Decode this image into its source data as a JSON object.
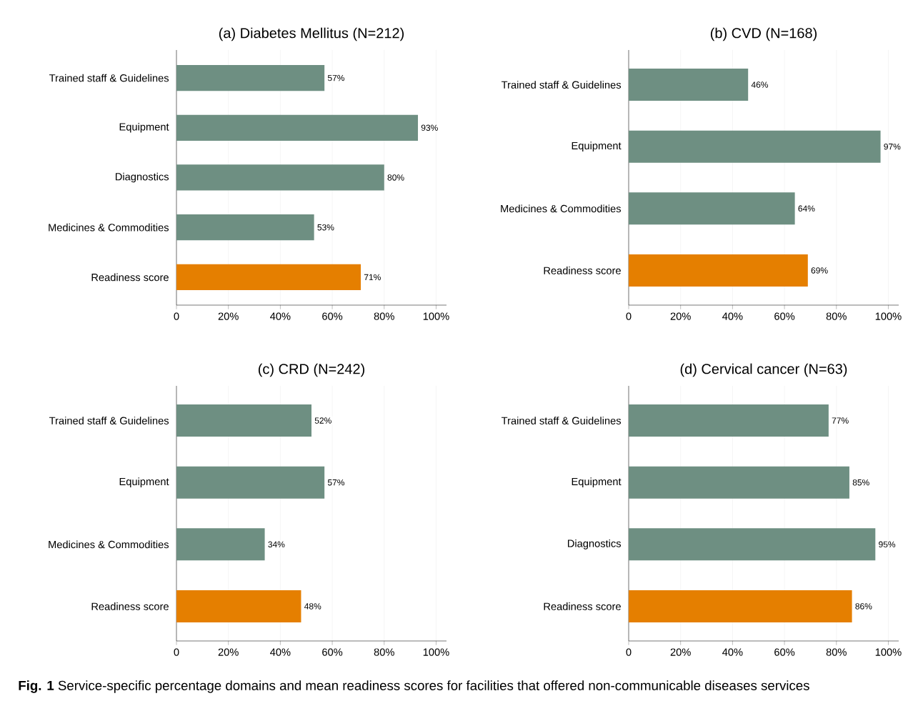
{
  "chart_data": [
    {
      "type": "bar",
      "orientation": "horizontal",
      "title": "(a) Diabetes Mellitus (N=212)",
      "categories": [
        "Trained staff & Guidelines",
        "Equipment",
        "Diagnostics",
        "Medicines & Commodities",
        "Readiness score"
      ],
      "values": [
        57,
        93,
        80,
        53,
        71
      ],
      "value_labels": [
        "57%",
        "93%",
        "80%",
        "53%",
        "71%"
      ],
      "colors": [
        "#6e8f82",
        "#6e8f82",
        "#6e8f82",
        "#6e8f82",
        "#e57f00"
      ],
      "xlim": [
        0,
        104
      ],
      "xticks": [
        0,
        {
          "value": 20,
          "label": "20%"
        },
        {
          "value": 40,
          "label": "40%"
        },
        {
          "value": 60,
          "label": "60%"
        },
        {
          "value": 80,
          "label": "80%"
        },
        {
          "value": 100,
          "label": "100%"
        }
      ],
      "grid": "x",
      "annotations": [
        "**Fig. 1** Service-specific percentage domains and mean readiness scores for facilities that offered non-communicable diseases services"
      ]
    },
    {
      "type": "bar",
      "orientation": "horizontal",
      "title": "(b) CVD (N=168)",
      "categories": [
        "Trained staff & Guidelines",
        "Equipment",
        "Medicines & Commodities",
        "Readiness score"
      ],
      "values": [
        46,
        97,
        64,
        69
      ],
      "value_labels": [
        "46%",
        "97%",
        "64%",
        "69%"
      ],
      "colors": [
        "#6e8f82",
        "#6e8f82",
        "#6e8f82",
        "#e57f00"
      ],
      "xlim": [
        0,
        104
      ],
      "xticks": [
        0,
        {
          "value": 20,
          "label": "20%"
        },
        {
          "value": 40,
          "label": "40%"
        },
        {
          "value": 60,
          "label": "60%"
        },
        {
          "value": 80,
          "label": "80%"
        },
        {
          "value": 100,
          "label": "100%"
        }
      ],
      "grid": "x"
    },
    {
      "type": "bar",
      "orientation": "horizontal",
      "title": "(c) CRD (N=242)",
      "categories": [
        "Trained staff & Guidelines",
        "Equipment",
        "Medicines & Commodities",
        "Readiness score"
      ],
      "values": [
        52,
        57,
        34,
        48
      ],
      "value_labels": [
        "52%",
        "57%",
        "34%",
        "48%"
      ],
      "colors": [
        "#6e8f82",
        "#6e8f82",
        "#6e8f82",
        "#e57f00"
      ],
      "xlim": [
        0,
        104
      ],
      "xticks": [
        0,
        {
          "value": 20,
          "label": "20%"
        },
        {
          "value": 40,
          "label": "40%"
        },
        {
          "value": 60,
          "label": "60%"
        },
        {
          "value": 80,
          "label": "80%"
        },
        {
          "value": 100,
          "label": "100%"
        }
      ],
      "grid": "x"
    },
    {
      "type": "bar",
      "orientation": "horizontal",
      "title": "(d) Cervical cancer (N=63)",
      "categories": [
        "Trained staff & Guidelines",
        "Equipment",
        "Diagnostics",
        "Readiness score"
      ],
      "values": [
        77,
        85,
        95,
        86
      ],
      "value_labels": [
        "77%",
        "85%",
        "95%",
        "86%"
      ],
      "colors": [
        "#6e8f82",
        "#6e8f82",
        "#6e8f82",
        "#e57f00"
      ],
      "xlim": [
        0,
        104
      ],
      "xticks": [
        0,
        {
          "value": 20,
          "label": "20%"
        },
        {
          "value": 40,
          "label": "40%"
        },
        {
          "value": 60,
          "label": "60%"
        },
        {
          "value": 80,
          "label": "80%"
        },
        {
          "value": 100,
          "label": "100%"
        }
      ],
      "grid": "x"
    }
  ]
}
